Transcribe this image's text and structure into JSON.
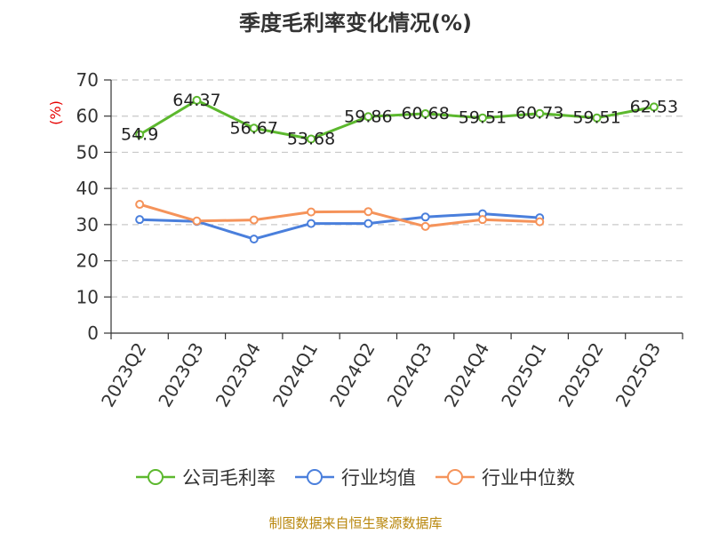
{
  "title": "季度毛利率变化情况(%)",
  "source": "制图数据来自恒生聚源数据库",
  "chart_data": {
    "type": "line",
    "title": "季度毛利率变化情况(%)",
    "ylabel": "(%)",
    "xlabel": "",
    "ylim": [
      0,
      70
    ],
    "yticks": [
      0,
      10,
      20,
      30,
      40,
      50,
      60,
      70
    ],
    "grid": true,
    "legend_position": "bottom",
    "categories": [
      "2023Q2",
      "2023Q3",
      "2023Q4",
      "2024Q1",
      "2024Q2",
      "2024Q3",
      "2024Q4",
      "2025Q1",
      "2025Q2",
      "2025Q3"
    ],
    "series": [
      {
        "name": "公司毛利率",
        "color": "#5cb82e",
        "show_labels": true,
        "labels": [
          "54.9",
          "64.37",
          "56.67",
          "53.68",
          "59.86",
          "60.68",
          "59.51",
          "60.73",
          "59.51",
          "62.53"
        ],
        "values": [
          54.9,
          64.37,
          56.67,
          53.68,
          59.86,
          60.68,
          59.51,
          60.73,
          59.51,
          62.53
        ]
      },
      {
        "name": "行业均值",
        "color": "#4a7fdc",
        "show_labels": false,
        "values": [
          31.4,
          30.9,
          26.0,
          30.3,
          30.3,
          32.1,
          33.0,
          31.9,
          null,
          null
        ]
      },
      {
        "name": "行业中位数",
        "color": "#f5935a",
        "show_labels": false,
        "values": [
          35.6,
          31.0,
          31.3,
          33.5,
          33.6,
          29.5,
          31.4,
          30.8,
          null,
          null
        ]
      }
    ]
  }
}
